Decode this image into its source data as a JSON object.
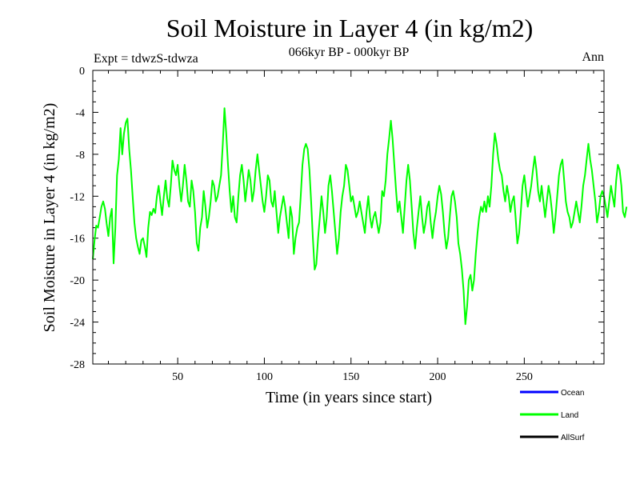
{
  "chart_data": {
    "type": "line",
    "title": "Soil Moisture in Layer 4 (in kg/m2)",
    "subtitle": "066kyr BP - 000kyr BP",
    "experiment_label": "Expt = tdwzS-tdwza",
    "season_label": "Ann",
    "xlabel": "Time (in years since start)",
    "ylabel": "Soil Moisture in Layer 4 (in kg/m2)",
    "xlim": [
      1,
      296
    ],
    "ylim": [
      -28,
      0
    ],
    "x_ticks": [
      50,
      100,
      150,
      200,
      250
    ],
    "y_ticks": [
      0,
      -4,
      -8,
      -12,
      -16,
      -20,
      -24,
      -28
    ],
    "grid": false,
    "legend_position": "bottom-right",
    "legend": [
      {
        "name": "Ocean",
        "color": "#0000ff"
      },
      {
        "name": "Land",
        "color": "#00ff00"
      },
      {
        "name": "AllSurf",
        "color": "#000000"
      }
    ],
    "series": [
      {
        "name": "Land",
        "color": "#00ff00",
        "x_start": 1,
        "x_step": 1,
        "values": [
          -18.0,
          -16.2,
          -14.8,
          -15.0,
          -14.0,
          -13.0,
          -12.5,
          -13.2,
          -14.6,
          -15.8,
          -14.0,
          -13.2,
          -18.4,
          -15.0,
          -10.0,
          -8.5,
          -5.5,
          -8.0,
          -6.0,
          -5.0,
          -4.6,
          -7.5,
          -9.5,
          -12.0,
          -14.5,
          -16.0,
          -16.8,
          -17.5,
          -16.2,
          -16.0,
          -16.8,
          -17.8,
          -15.0,
          -13.5,
          -13.8,
          -13.2,
          -13.6,
          -12.0,
          -11.0,
          -12.5,
          -13.8,
          -12.0,
          -10.5,
          -12.2,
          -13.0,
          -11.0,
          -8.6,
          -9.5,
          -10.0,
          -9.0,
          -11.0,
          -12.5,
          -11.0,
          -9.0,
          -10.5,
          -12.5,
          -13.0,
          -10.5,
          -11.5,
          -13.5,
          -16.5,
          -17.2,
          -15.0,
          -14.0,
          -11.5,
          -13.0,
          -15.0,
          -14.0,
          -12.5,
          -10.5,
          -11.0,
          -12.5,
          -12.0,
          -11.0,
          -10.0,
          -7.0,
          -3.6,
          -6.0,
          -9.0,
          -11.5,
          -13.5,
          -12.0,
          -14.0,
          -14.5,
          -12.0,
          -10.0,
          -9.0,
          -10.5,
          -12.5,
          -11.0,
          -9.5,
          -10.5,
          -12.5,
          -11.5,
          -9.5,
          -8.0,
          -9.5,
          -11.0,
          -12.5,
          -13.5,
          -12.0,
          -10.0,
          -10.5,
          -12.5,
          -13.0,
          -11.5,
          -13.5,
          -15.5,
          -14.0,
          -13.0,
          -12.0,
          -13.0,
          -14.5,
          -16.0,
          -13.0,
          -14.0,
          -17.5,
          -16.0,
          -15.0,
          -14.5,
          -12.0,
          -9.0,
          -7.5,
          -7.0,
          -7.5,
          -9.5,
          -12.5,
          -16.0,
          -19.0,
          -18.5,
          -16.0,
          -14.0,
          -12.0,
          -13.5,
          -15.5,
          -14.0,
          -11.0,
          -10.0,
          -11.5,
          -13.5,
          -15.5,
          -17.5,
          -16.0,
          -13.5,
          -12.0,
          -11.0,
          -9.0,
          -9.5,
          -11.0,
          -12.5,
          -12.0,
          -13.0,
          -14.0,
          -13.5,
          -12.5,
          -13.5,
          -14.5,
          -15.5,
          -13.5,
          -12.0,
          -14.0,
          -15.0,
          -14.0,
          -13.5,
          -14.5,
          -15.5,
          -14.5,
          -11.5,
          -12.0,
          -10.5,
          -8.0,
          -6.5,
          -4.8,
          -6.5,
          -9.0,
          -11.5,
          -13.5,
          -12.5,
          -14.0,
          -15.5,
          -13.0,
          -10.5,
          -9.0,
          -10.5,
          -13.0,
          -15.5,
          -17.0,
          -15.0,
          -13.5,
          -12.0,
          -14.0,
          -15.5,
          -14.5,
          -13.0,
          -12.5,
          -14.5,
          -16.0,
          -14.5,
          -13.5,
          -12.0,
          -11.0,
          -11.8,
          -13.5,
          -15.5,
          -17.0,
          -16.0,
          -14.0,
          -12.0,
          -11.5,
          -12.5,
          -14.0,
          -16.5,
          -17.5,
          -19.0,
          -21.0,
          -24.2,
          -22.5,
          -20.0,
          -19.5,
          -21.0,
          -20.0,
          -17.5,
          -15.5,
          -14.0,
          -13.0,
          -13.5,
          -12.5,
          -13.5,
          -12.0,
          -13.0,
          -11.0,
          -8.0,
          -6.0,
          -7.0,
          -8.5,
          -9.5,
          -10.0,
          -11.5,
          -12.5,
          -11.0,
          -12.0,
          -13.5,
          -12.5,
          -12.0,
          -14.0,
          -16.5,
          -15.5,
          -13.5,
          -11.0,
          -10.0,
          -11.5,
          -13.0,
          -12.0,
          -11.0,
          -9.5,
          -8.2,
          -9.5,
          -11.5,
          -12.5,
          -11.0,
          -12.5,
          -14.0,
          -12.5,
          -11.0,
          -12.0,
          -13.5,
          -15.5,
          -14.0,
          -12.0,
          -10.0,
          -9.0,
          -8.5,
          -10.5,
          -12.5,
          -13.5,
          -14.0,
          -15.0,
          -14.5,
          -13.5,
          -12.5,
          -13.5,
          -14.5,
          -13.0,
          -11.0,
          -10.0,
          -8.5,
          -7.0,
          -8.5,
          -9.5,
          -11.0,
          -12.5,
          -14.5,
          -13.5,
          -12.0,
          -11.5,
          -12.0,
          -13.0,
          -14.0,
          -12.5,
          -11.0,
          -12.0,
          -13.0,
          -10.5,
          -9.0,
          -9.5,
          -11.0,
          -13.5,
          -14.0,
          -13.0
        ]
      }
    ]
  }
}
